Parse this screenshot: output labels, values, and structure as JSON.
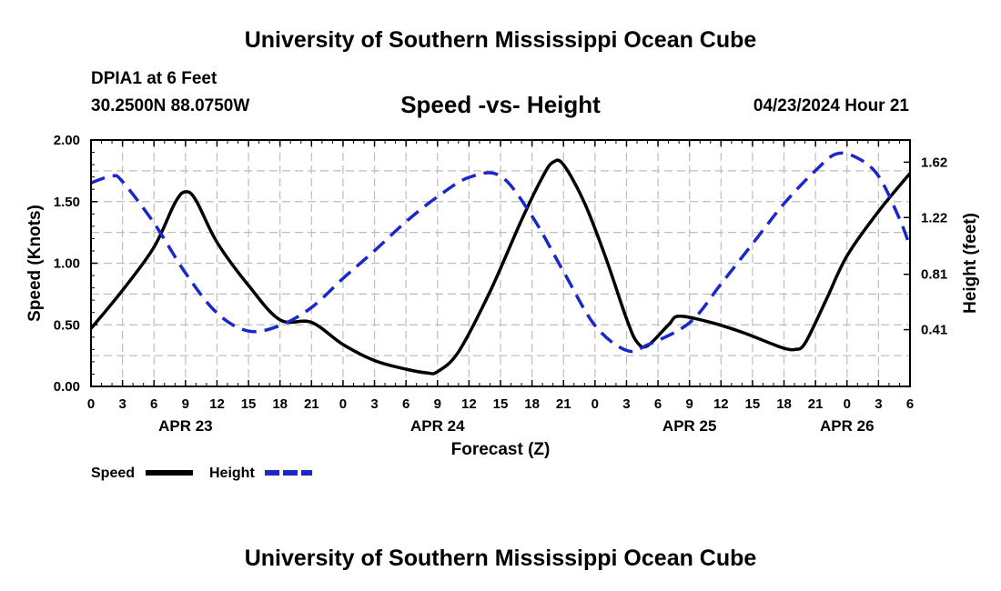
{
  "page": {
    "title": "University of Southern Mississippi Ocean Cube",
    "station": "DPIA1 at 6 Feet",
    "coords": "30.2500N  88.0750W",
    "subtitle": "Speed -vs- Height",
    "datetime": "04/23/2024 Hour 21",
    "footer_title": "University of Southern Mississippi Ocean Cube"
  },
  "chart_data": {
    "type": "line",
    "x_unit": "hours from APR 23 00Z",
    "x_range": [
      0,
      78
    ],
    "x_tick_labels": [
      "0",
      "3",
      "6",
      "9",
      "12",
      "15",
      "18",
      "21",
      "0",
      "3",
      "6",
      "9",
      "12",
      "15",
      "18",
      "21",
      "0",
      "3",
      "6",
      "9",
      "12",
      "15",
      "18",
      "21",
      "0",
      "3",
      "6"
    ],
    "date_labels": [
      {
        "text": "APR 23",
        "hour": 9
      },
      {
        "text": "APR 24",
        "hour": 33
      },
      {
        "text": "APR 25",
        "hour": 57
      },
      {
        "text": "APR 26",
        "hour": 72
      }
    ],
    "xlabel": "Forecast (Z)",
    "ylabel": "Speed (Knots)",
    "ylim": [
      0,
      2
    ],
    "y_ticks": [
      "0.00",
      "0.50",
      "1.00",
      "1.50",
      "2.00"
    ],
    "y2label": "Height (feet)",
    "y2lim": [
      0,
      1.78
    ],
    "y2_ticks": [
      "0.41",
      "0.81",
      "1.22",
      "1.62"
    ],
    "grid": true,
    "series": [
      {
        "name": "Speed",
        "axis": "left",
        "color": "#000000",
        "style": "solid",
        "points": [
          [
            0,
            0.47
          ],
          [
            3,
            0.78
          ],
          [
            6,
            1.13
          ],
          [
            8,
            1.49
          ],
          [
            9,
            1.58
          ],
          [
            10,
            1.51
          ],
          [
            12,
            1.17
          ],
          [
            15,
            0.82
          ],
          [
            18,
            0.54
          ],
          [
            21,
            0.52
          ],
          [
            24,
            0.34
          ],
          [
            27,
            0.21
          ],
          [
            30,
            0.14
          ],
          [
            32,
            0.11
          ],
          [
            33,
            0.12
          ],
          [
            35,
            0.28
          ],
          [
            38,
            0.77
          ],
          [
            41,
            1.35
          ],
          [
            43,
            1.7
          ],
          [
            44,
            1.82
          ],
          [
            45,
            1.8
          ],
          [
            47,
            1.49
          ],
          [
            49,
            1.05
          ],
          [
            51,
            0.55
          ],
          [
            52,
            0.36
          ],
          [
            53,
            0.33
          ],
          [
            55,
            0.5
          ],
          [
            56,
            0.57
          ],
          [
            59,
            0.52
          ],
          [
            62,
            0.44
          ],
          [
            65,
            0.34
          ],
          [
            66,
            0.31
          ],
          [
            67,
            0.3
          ],
          [
            68,
            0.35
          ],
          [
            70,
            0.7
          ],
          [
            72,
            1.06
          ],
          [
            75,
            1.42
          ],
          [
            78,
            1.73
          ]
        ]
      },
      {
        "name": "Height",
        "axis": "right",
        "color": "#1a28c8",
        "style": "dashed",
        "points": [
          [
            0,
            1.47
          ],
          [
            2,
            1.52
          ],
          [
            3,
            1.48
          ],
          [
            6,
            1.18
          ],
          [
            9,
            0.82
          ],
          [
            12,
            0.53
          ],
          [
            15,
            0.4
          ],
          [
            18,
            0.44
          ],
          [
            21,
            0.57
          ],
          [
            24,
            0.78
          ],
          [
            27,
            0.98
          ],
          [
            30,
            1.19
          ],
          [
            33,
            1.37
          ],
          [
            36,
            1.51
          ],
          [
            39,
            1.52
          ],
          [
            42,
            1.23
          ],
          [
            45,
            0.83
          ],
          [
            48,
            0.44
          ],
          [
            51,
            0.26
          ],
          [
            53,
            0.3
          ],
          [
            57,
            0.46
          ],
          [
            60,
            0.74
          ],
          [
            63,
            1.03
          ],
          [
            66,
            1.32
          ],
          [
            69,
            1.56
          ],
          [
            71,
            1.68
          ],
          [
            73,
            1.65
          ],
          [
            75,
            1.52
          ],
          [
            77,
            1.21
          ],
          [
            78,
            1.01
          ]
        ]
      }
    ],
    "legend": [
      {
        "label": "Speed",
        "color": "#000000",
        "style": "solid"
      },
      {
        "label": "Height",
        "color": "#1a28c8",
        "style": "dashed"
      }
    ]
  }
}
